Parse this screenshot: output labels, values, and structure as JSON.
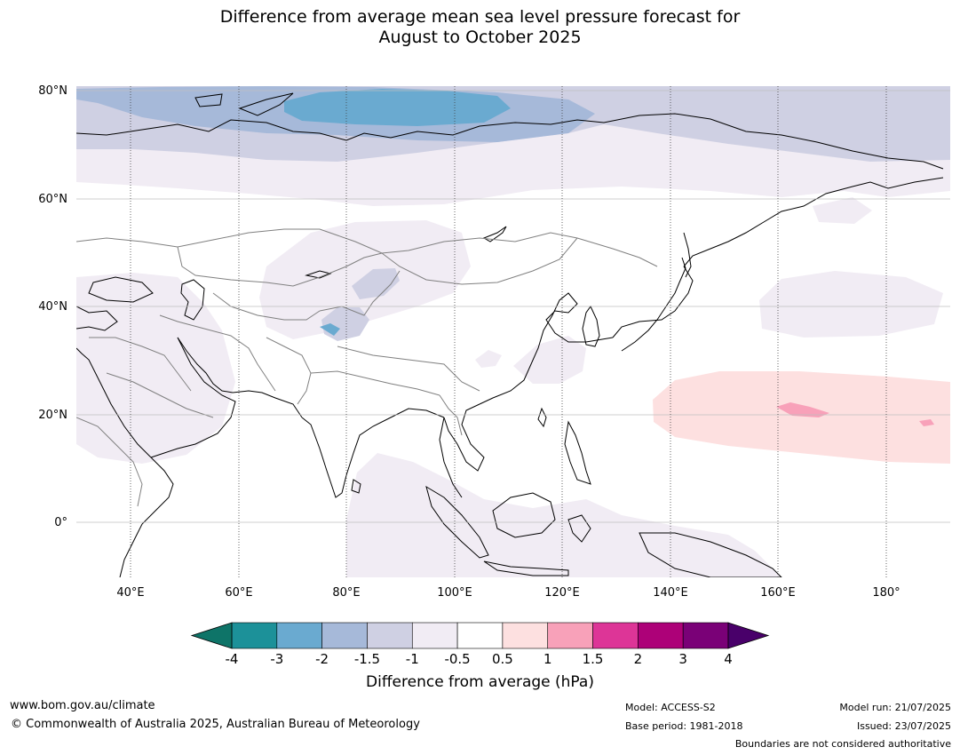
{
  "title_line1": "Difference from average mean sea level pressure forecast for",
  "title_line2": "August to October 2025",
  "lat_labels": [
    "80°N",
    "60°N",
    "40°N",
    "20°N",
    "0°"
  ],
  "lon_labels": [
    "40°E",
    "60°E",
    "80°E",
    "100°E",
    "120°E",
    "140°E",
    "160°E",
    "180°"
  ],
  "colorbar": {
    "label": "Difference from average (hPa)",
    "ticks": [
      "-4",
      "-3",
      "-2",
      "-1.5",
      "-1",
      "-0.5",
      "0.5",
      "1",
      "1.5",
      "2",
      "3",
      "4"
    ],
    "colors": [
      "#0e7468",
      "#1c9199",
      "#6aaad0",
      "#a6b9d9",
      "#cfd0e3",
      "#f1ecf4",
      "#ffffff",
      "#fde0e0",
      "#f8a1b9",
      "#dd3597",
      "#ad0178",
      "#7a0177",
      "#49006a"
    ]
  },
  "footer": {
    "website": "www.bom.gov.au/climate",
    "copyright": "© Commonwealth of Australia 2025, Australian Bureau of Meteorology",
    "model": "Model: ACCESS-S2",
    "base_period": "Base period: 1981-2018",
    "model_run": "Model run: 21/07/2025",
    "issued": "Issued: 23/07/2025",
    "disclaimer": "Boundaries are not considered authoritative"
  }
}
